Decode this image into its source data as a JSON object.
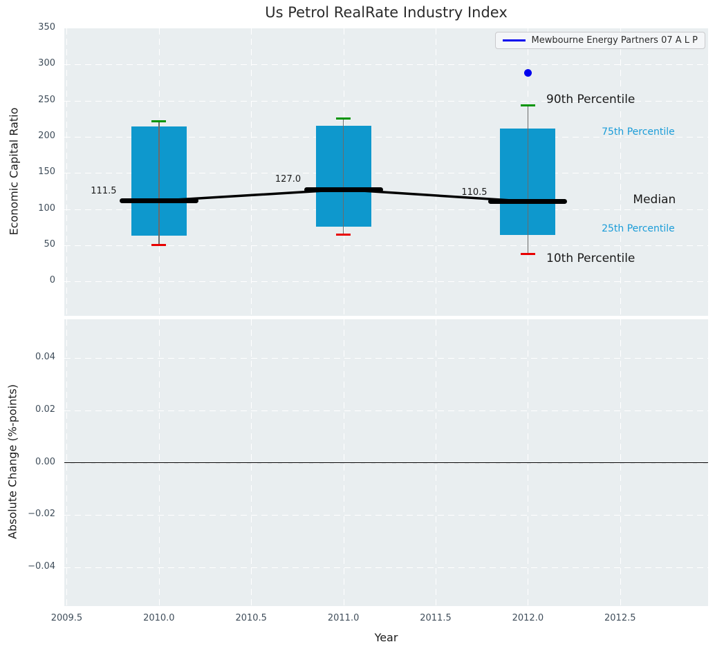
{
  "title": "Us Petrol RealRate Industry Index",
  "legend": {
    "label": "Mewbourne Energy Partners 07 A L P"
  },
  "colors": {
    "plot_bg": "#e9eef0",
    "box_fill": "#0e98cd",
    "p90_cap": "#009400",
    "p10_cap": "#e80000",
    "median": "#000000",
    "whisker": "#6b6b6b",
    "company_series": "#0000ee",
    "annotation_accent": "#1a9cd8",
    "tick_text": "#3e4c59"
  },
  "chart_data": [
    {
      "type": "boxplot",
      "ylabel": "Economic Capital Ratio",
      "ylim": [
        -47.7,
        350
      ],
      "xlim": [
        2009.487,
        2012.977
      ],
      "grid": true,
      "yticks": [
        {
          "v": 350,
          "label": "350"
        },
        {
          "v": 300,
          "label": "300"
        },
        {
          "v": 250,
          "label": "250"
        },
        {
          "v": 200,
          "label": "200"
        },
        {
          "v": 150,
          "label": "150"
        },
        {
          "v": 100,
          "label": "100"
        },
        {
          "v": 50,
          "label": "50"
        },
        {
          "v": 0,
          "label": "0"
        }
      ],
      "grid_x": [
        2009.5,
        2010.0,
        2010.5,
        2011.0,
        2011.5,
        2012.0,
        2012.5
      ],
      "boxes": [
        {
          "x": 2010,
          "p10": 50,
          "p25": 63,
          "median": 111.5,
          "p75": 214,
          "p90": 221
        },
        {
          "x": 2011,
          "p10": 65,
          "p25": 76,
          "median": 127.0,
          "p75": 215,
          "p90": 225
        },
        {
          "x": 2012,
          "p10": 38,
          "p25": 64,
          "median": 110.5,
          "p75": 211,
          "p90": 243
        }
      ],
      "median_line": [
        {
          "x": 2010,
          "y": 111.5
        },
        {
          "x": 2011,
          "y": 127.0
        },
        {
          "x": 2012,
          "y": 110.5
        }
      ],
      "company_points": [
        {
          "x": 2012,
          "y": 288,
          "series": "Mewbourne Energy Partners 07 A L P"
        }
      ],
      "annotations": [
        {
          "text": "90th Percentile",
          "x": 2012.1,
          "y": 251,
          "kind": "large",
          "align": "left"
        },
        {
          "text": "75th Percentile",
          "x": 2012.4,
          "y": 206,
          "kind": "accent",
          "align": "left"
        },
        {
          "text": "Median",
          "x": 2012.57,
          "y": 112,
          "kind": "large",
          "align": "left"
        },
        {
          "text": "25th Percentile",
          "x": 2012.4,
          "y": 72,
          "kind": "accent",
          "align": "left"
        },
        {
          "text": "10th Percentile",
          "x": 2012.1,
          "y": 31,
          "kind": "large",
          "align": "left"
        },
        {
          "text": "111.5",
          "x": 2009.77,
          "y": 124,
          "kind": "value",
          "align": "right"
        },
        {
          "text": "127.0",
          "x": 2010.63,
          "y": 141,
          "kind": "value",
          "align": "left"
        },
        {
          "text": "110.5",
          "x": 2011.64,
          "y": 122,
          "kind": "value",
          "align": "left"
        }
      ],
      "legend_position": "upper right"
    },
    {
      "type": "line",
      "ylabel": "Absolute Change (%-points)",
      "xlabel": "Year",
      "ylim": [
        -0.0549,
        0.0549
      ],
      "xlim": [
        2009.487,
        2012.977
      ],
      "grid": true,
      "yticks": [
        {
          "v": 0.04,
          "label": "0.04"
        },
        {
          "v": 0.02,
          "label": "0.02"
        },
        {
          "v": 0.0,
          "label": "0.00"
        },
        {
          "v": -0.02,
          "label": "−0.02"
        },
        {
          "v": -0.04,
          "label": "−0.04"
        }
      ],
      "xticks": [
        {
          "v": 2009.5,
          "label": "2009.5"
        },
        {
          "v": 2010.0,
          "label": "2010.0"
        },
        {
          "v": 2010.5,
          "label": "2010.5"
        },
        {
          "v": 2011.0,
          "label": "2011.0"
        },
        {
          "v": 2011.5,
          "label": "2011.5"
        },
        {
          "v": 2012.0,
          "label": "2012.0"
        },
        {
          "v": 2012.5,
          "label": "2012.5"
        }
      ],
      "grid_x": [
        2009.5,
        2010.0,
        2010.5,
        2011.0,
        2011.5,
        2012.0,
        2012.5
      ],
      "zero_line_y": 0.0,
      "series": [
        {
          "name": "Mewbourne Energy Partners 07 A L P",
          "points": []
        }
      ]
    }
  ]
}
